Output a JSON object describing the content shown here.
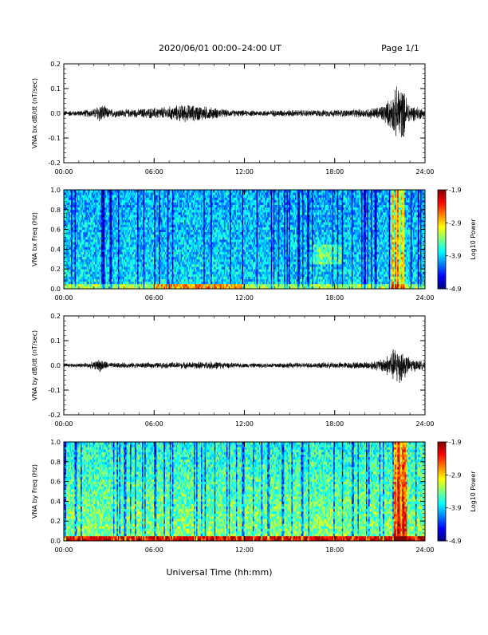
{
  "header": {
    "title": "2020/06/01  00:00–24:00 UT",
    "page_label": "Page 1/1"
  },
  "xlabel": "Universal Time (hh:mm)",
  "chart_data": [
    {
      "type": "line",
      "ylabel": "VNA bx dB/dt (nT/sec)",
      "ylim": [
        -0.2,
        0.2
      ],
      "yticks": [
        "0.2",
        "0.1",
        "0.0",
        "-0.1",
        "-0.2"
      ],
      "xlim": [
        0,
        24
      ],
      "xticks": [
        "00:00",
        "06:00",
        "12:00",
        "18:00",
        "24:00"
      ],
      "envelope": {
        "hours": [
          0,
          1,
          2,
          2.4,
          3,
          4,
          5,
          6,
          7,
          8,
          9,
          10,
          11,
          12,
          13,
          14,
          15,
          16,
          17,
          18,
          19,
          20,
          21,
          21.6,
          22,
          22.3,
          22.6,
          23,
          24
        ],
        "amplitude": [
          0.012,
          0.013,
          0.02,
          0.045,
          0.02,
          0.018,
          0.02,
          0.025,
          0.03,
          0.04,
          0.035,
          0.025,
          0.015,
          0.013,
          0.013,
          0.015,
          0.015,
          0.015,
          0.015,
          0.016,
          0.017,
          0.02,
          0.03,
          0.06,
          0.1,
          0.14,
          0.1,
          0.04,
          0.02
        ]
      }
    },
    {
      "type": "heatmap",
      "ylabel": "VNA bx Freq (Hz)",
      "ylim": [
        0,
        1
      ],
      "yticks": [
        "1.0",
        "0.8",
        "0.6",
        "0.4",
        "0.2",
        "0.0"
      ],
      "xlim": [
        0,
        24
      ],
      "xticks": [
        "00:00",
        "06:00",
        "12:00",
        "18:00",
        "24:00"
      ],
      "colorbar": {
        "label": "Log10 Power",
        "min": -4.9,
        "max": -1.9,
        "ticks": [
          "-1.9",
          "-2.9",
          "-3.9",
          "-4.9"
        ]
      },
      "features": {
        "enhanced_band_hours": [
          21.7,
          22.6
        ],
        "low_freq_enhancement_hours": [
          6,
          12
        ]
      }
    },
    {
      "type": "line",
      "ylabel": "VNA by dB/dt (nT/sec)",
      "ylim": [
        -0.2,
        0.2
      ],
      "yticks": [
        "0.2",
        "0.1",
        "0.0",
        "-0.1",
        "-0.2"
      ],
      "xlim": [
        0,
        24
      ],
      "xticks": [
        "00:00",
        "06:00",
        "12:00",
        "18:00",
        "24:00"
      ],
      "envelope": {
        "hours": [
          0,
          1,
          2,
          2.4,
          3,
          4,
          5,
          6,
          7,
          8,
          9,
          10,
          11,
          12,
          13,
          14,
          15,
          16,
          17,
          18,
          19,
          20,
          21,
          21.6,
          22,
          22.3,
          22.6,
          23,
          24
        ],
        "amplitude": [
          0.01,
          0.01,
          0.015,
          0.03,
          0.012,
          0.012,
          0.012,
          0.012,
          0.014,
          0.015,
          0.016,
          0.018,
          0.012,
          0.01,
          0.01,
          0.012,
          0.012,
          0.012,
          0.013,
          0.014,
          0.014,
          0.016,
          0.025,
          0.05,
          0.08,
          0.09,
          0.06,
          0.03,
          0.018
        ]
      }
    },
    {
      "type": "heatmap",
      "ylabel": "VNA by Freq (Hz)",
      "ylim": [
        0,
        1
      ],
      "yticks": [
        "1.0",
        "0.8",
        "0.6",
        "0.4",
        "0.2",
        "0.0"
      ],
      "xlim": [
        0,
        24
      ],
      "xticks": [
        "00:00",
        "06:00",
        "12:00",
        "18:00",
        "24:00"
      ],
      "colorbar": {
        "label": "Log10 Power",
        "min": -4.9,
        "max": -1.9,
        "ticks": [
          "-1.9",
          "-2.9",
          "-3.9",
          "-4.9"
        ]
      },
      "features": {
        "enhanced_band_hours": [
          21.9,
          22.8
        ],
        "low_freq_enhancement_hours": [
          0,
          24
        ]
      }
    }
  ]
}
